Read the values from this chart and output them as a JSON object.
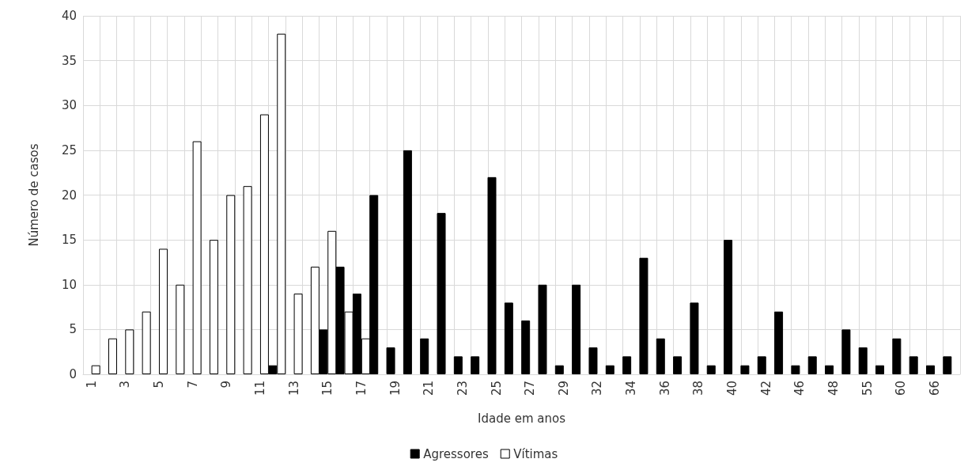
{
  "chart_data": {
    "type": "bar",
    "xlabel": "Idade em anos",
    "ylabel": "Número de casos",
    "categories": [
      "1",
      null,
      "3",
      null,
      "5",
      null,
      "7",
      null,
      "9",
      null,
      "11",
      null,
      "13",
      null,
      "15",
      null,
      "17",
      null,
      "19",
      null,
      "21",
      null,
      "23",
      null,
      "25",
      null,
      "27",
      null,
      "29",
      null,
      "32",
      null,
      "34",
      null,
      "36",
      null,
      "38",
      null,
      "40",
      null,
      "42",
      null,
      "46",
      null,
      "48",
      null,
      "55",
      null,
      "60",
      null,
      "66",
      null
    ],
    "series": [
      {
        "name": "Agressores",
        "color": "#000000",
        "values": [
          null,
          null,
          null,
          null,
          null,
          null,
          null,
          null,
          null,
          null,
          null,
          1,
          null,
          null,
          5,
          12,
          9,
          20,
          3,
          25,
          4,
          18,
          2,
          2,
          22,
          8,
          6,
          10,
          1,
          10,
          3,
          1,
          2,
          13,
          4,
          2,
          8,
          1,
          15,
          1,
          2,
          7,
          1,
          2,
          1,
          5,
          3,
          1,
          4,
          2,
          1,
          2
        ]
      },
      {
        "name": "Vítimas",
        "color": "#ffffff",
        "values": [
          1,
          4,
          5,
          7,
          14,
          10,
          26,
          15,
          20,
          21,
          29,
          38,
          9,
          12,
          16,
          7,
          4,
          null,
          null,
          null,
          null,
          null,
          null,
          null,
          null,
          null,
          null,
          null,
          null,
          null,
          null,
          null,
          null,
          null,
          null,
          null,
          null,
          null,
          null,
          null,
          null,
          null,
          null,
          null,
          null,
          null,
          null,
          null,
          null,
          null,
          null,
          null
        ]
      }
    ],
    "ylim": [
      0,
      40
    ],
    "yticks": [
      0,
      5,
      10,
      15,
      20,
      25,
      30,
      35,
      40
    ],
    "grid": true,
    "legend": "bottom"
  }
}
